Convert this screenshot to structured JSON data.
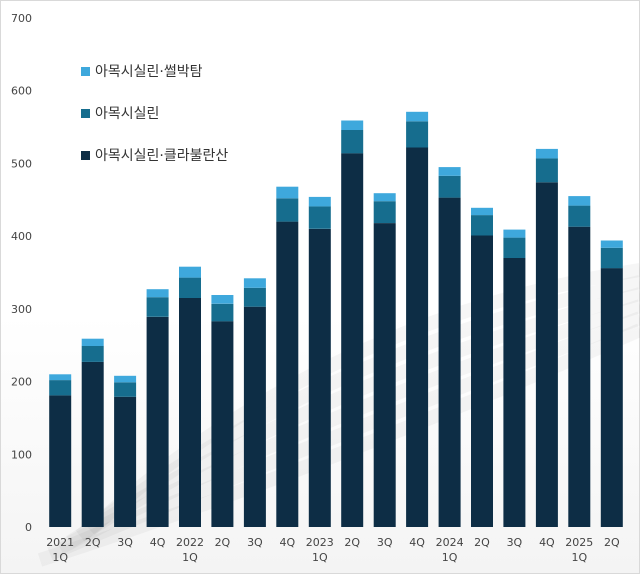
{
  "chart_data": {
    "type": "bar",
    "stacked": true,
    "categories": [
      [
        "2021",
        "1Q"
      ],
      [
        "2Q"
      ],
      [
        "3Q"
      ],
      [
        "4Q"
      ],
      [
        "2022",
        "1Q"
      ],
      [
        "2Q"
      ],
      [
        "3Q"
      ],
      [
        "4Q"
      ],
      [
        "2023",
        "1Q"
      ],
      [
        "2Q"
      ],
      [
        "3Q"
      ],
      [
        "4Q"
      ],
      [
        "2024",
        "1Q"
      ],
      [
        "2Q"
      ],
      [
        "3Q"
      ],
      [
        "4Q"
      ],
      [
        "2025",
        "1Q"
      ],
      [
        "2Q"
      ]
    ],
    "series": [
      {
        "name": "아목시실린·클라불란산",
        "color": "#0d2d45",
        "values": [
          181,
          227,
          179,
          289,
          315,
          283,
          303,
          420,
          410,
          514,
          418,
          522,
          453,
          401,
          370,
          474,
          413,
          356
        ]
      },
      {
        "name": "아목시실린",
        "color": "#166d8e",
        "values": [
          21,
          22,
          20,
          27,
          28,
          24,
          26,
          32,
          31,
          32,
          30,
          36,
          30,
          28,
          28,
          33,
          29,
          28
        ]
      },
      {
        "name": "아목시실린·썰박탐",
        "color": "#3ea8dc",
        "values": [
          8,
          10,
          9,
          11,
          15,
          12,
          13,
          16,
          13,
          13,
          11,
          13,
          12,
          10,
          11,
          13,
          13,
          10
        ]
      }
    ],
    "ylim": [
      0,
      700
    ],
    "yticks": [
      "0",
      "100",
      "200",
      "300",
      "400",
      "500",
      "600",
      "700"
    ],
    "legend_order": [
      2,
      1,
      0
    ],
    "legend_position": "top-left",
    "grid": false
  }
}
